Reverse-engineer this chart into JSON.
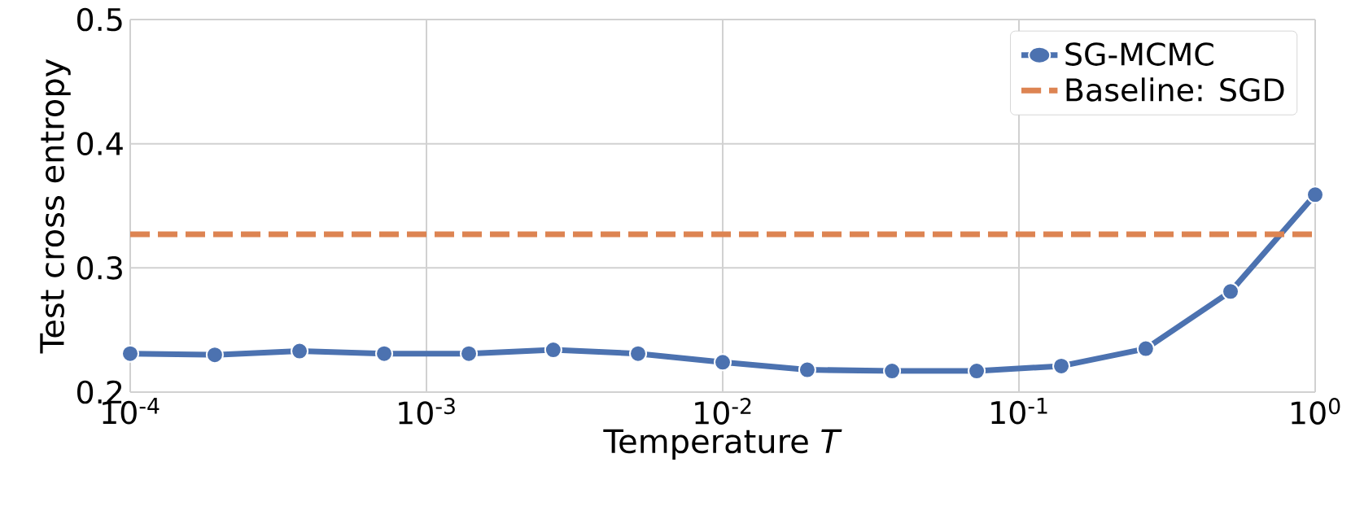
{
  "chart_data": {
    "type": "line",
    "xlabel": "Temperature *T*",
    "ylabel": "Test cross entropy",
    "x": [
      0.0001,
      0.000193,
      0.000373,
      0.00072,
      0.00139,
      0.00268,
      0.00518,
      0.01,
      0.0193,
      0.0373,
      0.072,
      0.139,
      0.268,
      0.518,
      1
    ],
    "series": [
      {
        "name": "SG-MCMC",
        "color": "#4c72b0",
        "values": [
          0.231,
          0.23,
          0.233,
          0.231,
          0.231,
          0.234,
          0.231,
          0.224,
          0.218,
          0.217,
          0.217,
          0.221,
          0.235,
          0.281,
          0.359
        ]
      }
    ],
    "ref_lines": [
      {
        "axis": "y",
        "value": 0.327,
        "label": "Baseline: SGD",
        "color": "#dd8452",
        "line_style": "dashed"
      }
    ],
    "log": "x",
    "xlim": [
      0.0001,
      1
    ],
    "ylim": [
      0.2,
      0.5
    ],
    "xticks": [
      {
        "value": 0.0001,
        "label": "10$^{-4}$"
      },
      {
        "value": 0.001,
        "label": "10$^{-3}$"
      },
      {
        "value": 0.01,
        "label": "10$^{-2}$"
      },
      {
        "value": 0.1,
        "label": "10$^{-1}$"
      },
      {
        "value": 1,
        "label": "10$^{0}$"
      }
    ],
    "yticks": [
      0.2,
      0.3,
      0.4,
      0.5
    ],
    "grid": true,
    "legend": "top right",
    "marker": "circle",
    "line_style": "solid"
  }
}
